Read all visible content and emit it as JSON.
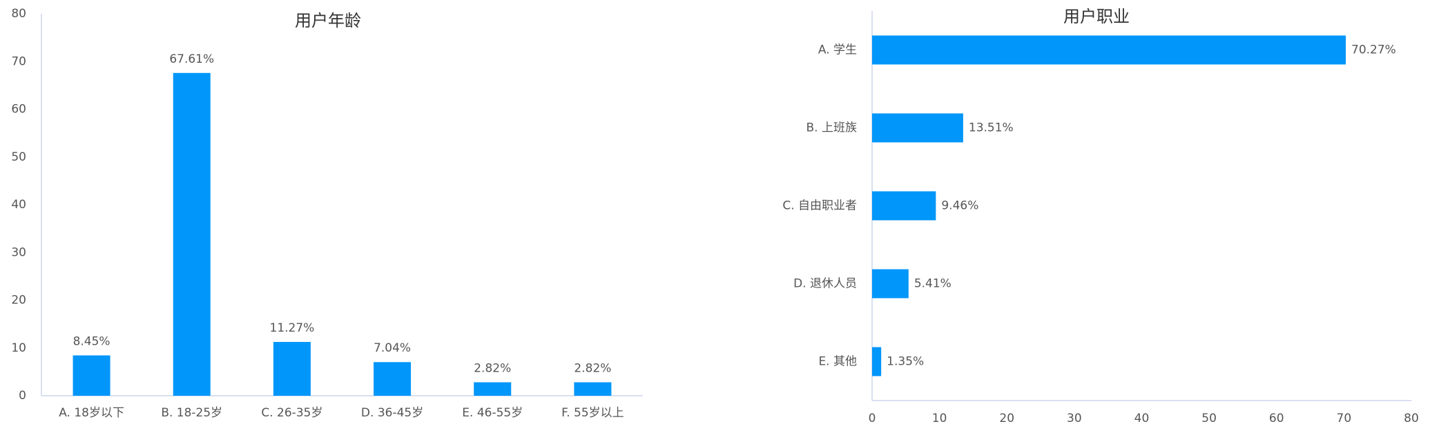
{
  "chart_data": [
    {
      "type": "bar",
      "title": "用户年龄",
      "categories": [
        "A. 18岁以下",
        "B. 18-25岁",
        "C. 26-35岁",
        "D. 36-45岁",
        "E. 46-55岁",
        "F. 55岁以上"
      ],
      "values": [
        8.45,
        67.61,
        11.27,
        7.04,
        2.82,
        2.82
      ],
      "value_labels": [
        "8.45%",
        "67.61%",
        "11.27%",
        "7.04%",
        "2.82%",
        "2.82%"
      ],
      "color": "#0096fa",
      "ylim": [
        0,
        80
      ],
      "yticks": [
        0,
        10,
        20,
        30,
        40,
        50,
        60,
        70,
        80
      ],
      "grid": false
    },
    {
      "type": "barh",
      "title": "用户职业",
      "categories": [
        "A. 学生",
        "B. 上班族",
        "C. 自由职业者",
        "D. 退休人员",
        "E. 其他"
      ],
      "values": [
        70.27,
        13.51,
        9.46,
        5.41,
        1.35
      ],
      "value_labels": [
        "70.27%",
        "13.51%",
        "9.46%",
        "5.41%",
        "1.35%"
      ],
      "color": "#0096fa",
      "xlim": [
        0,
        80
      ],
      "xticks": [
        0,
        10,
        20,
        30,
        40,
        50,
        60,
        70,
        80
      ],
      "grid": false
    }
  ]
}
